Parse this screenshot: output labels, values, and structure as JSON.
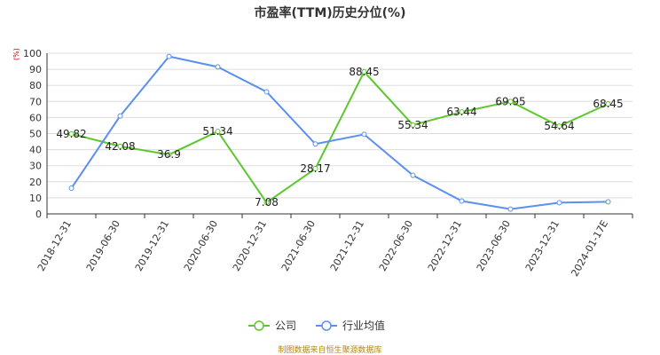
{
  "chart_data": {
    "type": "line",
    "title": "市盈率(TTM)历史分位(%)",
    "unit_label": "(%)",
    "categories": [
      "2018-12-31",
      "2019-06-30",
      "2019-12-31",
      "2020-06-30",
      "2020-12-31",
      "2021-06-30",
      "2021-12-31",
      "2022-06-30",
      "2022-12-31",
      "2023-06-30",
      "2023-12-31",
      "2024-01-17E"
    ],
    "ylim": [
      0,
      100
    ],
    "yticks": [
      0,
      10,
      20,
      30,
      40,
      50,
      60,
      70,
      80,
      90,
      100
    ],
    "grid": true,
    "legend_position": "bottom",
    "series": [
      {
        "name": "公司",
        "color": "#5cc72e",
        "labels_shown": true,
        "values": [
          49.82,
          42.08,
          36.9,
          51.34,
          7.08,
          28.17,
          88.45,
          55.34,
          63.44,
          69.95,
          54.64,
          68.45
        ]
      },
      {
        "name": "行业均值",
        "color": "#5b8ff0",
        "labels_shown": false,
        "values": [
          16,
          61,
          98,
          91.5,
          76,
          43.5,
          49.5,
          24,
          8,
          3,
          7,
          7.5
        ]
      }
    ]
  },
  "footer": "制图数据来自恒生聚源数据库"
}
